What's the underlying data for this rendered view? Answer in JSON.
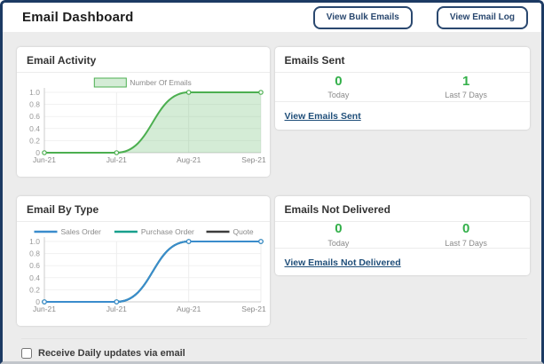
{
  "header": {
    "title": "Email Dashboard",
    "buttons": [
      {
        "label": "View Bulk Emails"
      },
      {
        "label": "View Email Log"
      }
    ]
  },
  "panels": {
    "email_activity": {
      "title": "Email Activity"
    },
    "emails_sent": {
      "title": "Emails Sent",
      "stats": [
        {
          "value": "0",
          "label": "Today"
        },
        {
          "value": "1",
          "label": "Last 7 Days"
        }
      ],
      "link": "View Emails Sent"
    },
    "email_by_type": {
      "title": "Email By Type"
    },
    "emails_not_delivered": {
      "title": "Emails Not Delivered",
      "stats": [
        {
          "value": "0",
          "label": "Today"
        },
        {
          "value": "0",
          "label": "Last 7 Days"
        }
      ],
      "link": "View Emails Not Delivered"
    }
  },
  "footer": {
    "checkbox_label": "Receive Daily updates via email",
    "checked": false
  },
  "colors": {
    "window_border": "#1c3a63",
    "button_navy": "#2a486f",
    "link_navy": "#1f4e79",
    "stat_green": "#33b04a",
    "chart_green": "#4caf50",
    "chart_blue": "#3a8ccc",
    "chart_teal": "#179f8d",
    "chart_dark": "#3c3c3c",
    "body_gray": "#ececec"
  },
  "chart_data": [
    {
      "id": "email_activity",
      "type": "area",
      "title": "Email Activity",
      "x": [
        "Jun-21",
        "Jul-21",
        "Aug-21",
        "Sep-21"
      ],
      "series": [
        {
          "name": "Number Of Emails",
          "color": "#4caf50",
          "fill": "rgba(102,187,106,0.28)",
          "values": [
            0,
            0,
            1,
            1
          ]
        }
      ],
      "ylim": [
        0,
        1
      ],
      "yticks": [
        0,
        0.2,
        0.4,
        0.6,
        0.8,
        1.0
      ],
      "xlabel": "",
      "ylabel": "",
      "legend_position": "top",
      "grid": true,
      "smooth": true
    },
    {
      "id": "email_by_type",
      "type": "line",
      "title": "Email By Type",
      "x": [
        "Jun-21",
        "Jul-21",
        "Aug-21",
        "Sep-21"
      ],
      "series": [
        {
          "name": "Sales Order",
          "color": "#3a8ccc",
          "values": [
            0,
            0,
            1,
            1
          ]
        },
        {
          "name": "Purchase Order",
          "color": "#179f8d",
          "values": [
            0,
            0,
            1,
            1
          ]
        },
        {
          "name": "Quote",
          "color": "#3c3c3c",
          "values": [
            0,
            0,
            1,
            1
          ]
        }
      ],
      "ylim": [
        0,
        1
      ],
      "yticks": [
        0,
        0.2,
        0.4,
        0.6,
        0.8,
        1.0
      ],
      "xlabel": "",
      "ylabel": "",
      "legend_position": "top",
      "grid": true,
      "smooth": true,
      "note": "series overlap exactly; top visible line is Sales Order (blue)"
    }
  ]
}
